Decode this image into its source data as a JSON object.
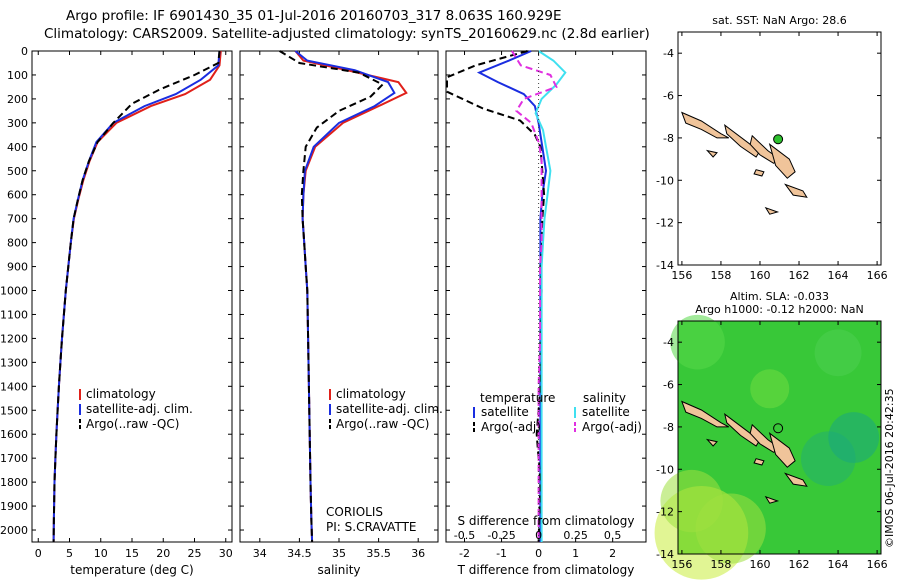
{
  "header": {
    "line1": "Argo profile: IF 6901430_35 01-Jul-2016 20160703_317 8.063S 160.929E",
    "line2": "Climatology: CARS2009. Satellite-adjusted climatology: synTS_20160629.nc (2.8d earlier)"
  },
  "colors": {
    "climatology": "#e0201a",
    "satellite": "#1a2de0",
    "argo": "#000000",
    "salinity_satellite": "#3fe0f0",
    "salinity_argo": "#e030e0",
    "land": "#f0c49a",
    "sla_field": "#38c838"
  },
  "legends": {
    "temp": [
      "climatology",
      "satellite-adj. clim.",
      "Argo(..raw -QC)"
    ],
    "sal": [
      "climatology",
      "satellite-adj. clim.",
      "Argo(..raw -QC)"
    ],
    "diff_head_t": "temperature",
    "diff_head_s": "salinity",
    "diff_t": [
      "satellite",
      "Argo(-adj)"
    ],
    "diff_s": [
      "satellite",
      "Argo(-adj)"
    ]
  },
  "annotations": {
    "coriolis": "CORIOLIS",
    "pi": "PI: S.CRAVATTE"
  },
  "map_titles": {
    "sst": "sat. SST: NaN Argo: 28.6",
    "sla1": "Altim. SLA: -0.033",
    "sla2": "Argo h1000: -0.12 h2000: NaN"
  },
  "credit": "©IMOS 06-Jul-2016 20:42:35",
  "chart_data": [
    {
      "type": "line",
      "xlabel": "temperature (deg C)",
      "ylim": [
        2050,
        0
      ],
      "xlim": [
        -1,
        31
      ],
      "xticks": [
        0,
        5,
        10,
        15,
        20,
        25,
        30
      ],
      "yticks": [
        0,
        100,
        200,
        300,
        400,
        500,
        600,
        700,
        800,
        900,
        1000,
        1100,
        1200,
        1300,
        1400,
        1500,
        1600,
        1700,
        1800,
        1900,
        2000
      ],
      "series": [
        {
          "name": "climatology",
          "color_key": "climatology",
          "dash": "",
          "x": [
            29.2,
            29.0,
            27.5,
            23.5,
            18.0,
            12.5,
            9.5,
            8.2,
            7.2,
            6.4,
            5.7,
            5.2,
            4.8,
            4.4,
            4.1,
            3.8,
            3.55,
            3.3,
            3.1,
            2.9,
            2.75,
            2.6,
            2.5,
            2.45
          ],
          "y": [
            0,
            60,
            120,
            180,
            230,
            300,
            380,
            460,
            540,
            620,
            700,
            800,
            900,
            1000,
            1100,
            1200,
            1300,
            1400,
            1500,
            1600,
            1700,
            1800,
            1950,
            2050
          ]
        },
        {
          "name": "satellite-adj. clim.",
          "color_key": "satellite",
          "dash": "",
          "x": [
            29.0,
            28.8,
            26.0,
            22.0,
            17.0,
            12.0,
            9.3,
            8.1,
            7.1,
            6.35,
            5.65,
            5.2,
            4.8,
            4.4,
            4.1,
            3.8,
            3.55,
            3.3,
            3.1,
            2.9,
            2.75,
            2.6,
            2.5,
            2.45
          ],
          "y": [
            0,
            60,
            120,
            180,
            230,
            300,
            380,
            460,
            540,
            620,
            700,
            800,
            900,
            1000,
            1100,
            1200,
            1300,
            1400,
            1500,
            1600,
            1700,
            1800,
            1950,
            2050
          ]
        },
        {
          "name": "Argo(..raw -QC)",
          "color_key": "argo",
          "dash": "7,4",
          "x": [
            29.0,
            28.8,
            25.0,
            19.5,
            15.0,
            12.0,
            9.5,
            8.1,
            7.1,
            6.35,
            5.65,
            5.2,
            4.8,
            4.4,
            4.1,
            3.8,
            3.55,
            3.3,
            3.1,
            2.9,
            2.75,
            2.6,
            2.5,
            2.45
          ],
          "y": [
            0,
            50,
            100,
            160,
            220,
            300,
            380,
            460,
            540,
            620,
            700,
            800,
            900,
            1000,
            1100,
            1200,
            1300,
            1400,
            1500,
            1600,
            1700,
            1800,
            1950,
            2050
          ]
        }
      ]
    },
    {
      "type": "line",
      "xlabel": "salinity",
      "ylim": [
        2050,
        0
      ],
      "xlim": [
        33.75,
        36.25
      ],
      "xticks": [
        34,
        34.5,
        35,
        35.5,
        36
      ],
      "series": [
        {
          "name": "climatology",
          "color_key": "climatology",
          "dash": "",
          "x": [
            34.45,
            34.55,
            35.1,
            35.75,
            35.85,
            35.5,
            35.05,
            34.7,
            34.58,
            34.55,
            34.54,
            34.56,
            34.58,
            34.6,
            34.61,
            34.62,
            34.63,
            34.64,
            34.65,
            34.66
          ],
          "y": [
            0,
            40,
            80,
            130,
            175,
            230,
            300,
            400,
            500,
            600,
            700,
            800,
            900,
            1000,
            1200,
            1400,
            1600,
            1800,
            1950,
            2050
          ]
        },
        {
          "name": "satellite-adj. clim.",
          "color_key": "satellite",
          "dash": "",
          "x": [
            34.45,
            34.6,
            35.2,
            35.62,
            35.7,
            35.45,
            35.0,
            34.68,
            34.57,
            34.55,
            34.54,
            34.56,
            34.58,
            34.6,
            34.61,
            34.62,
            34.63,
            34.64,
            34.65,
            34.66
          ],
          "y": [
            0,
            40,
            80,
            130,
            175,
            230,
            300,
            400,
            500,
            600,
            700,
            800,
            900,
            1000,
            1200,
            1400,
            1600,
            1800,
            1950,
            2050
          ]
        },
        {
          "name": "Argo(..raw -QC)",
          "color_key": "argo",
          "dash": "7,4",
          "x": [
            34.25,
            34.5,
            35.25,
            35.55,
            35.4,
            35.0,
            34.72,
            34.58,
            34.55,
            34.53,
            34.54,
            34.56,
            34.58,
            34.6,
            34.61,
            34.62,
            34.63,
            34.64,
            34.65,
            34.66
          ],
          "y": [
            0,
            50,
            90,
            140,
            190,
            250,
            320,
            400,
            500,
            600,
            700,
            800,
            900,
            1000,
            1200,
            1400,
            1600,
            1800,
            1950,
            2050
          ]
        }
      ]
    },
    {
      "type": "line",
      "xlabel": "T difference from climatology",
      "xlabel_top": "S difference from climatology",
      "ylim": [
        2050,
        0
      ],
      "xlim": [
        -2.5,
        2.9
      ],
      "xticks": [
        -2,
        -1,
        0,
        1,
        2
      ],
      "xticks_s": [
        -0.5,
        -0.25,
        0,
        0.25,
        0.5
      ],
      "s_scale": 4,
      "series": [
        {
          "name": "satellite",
          "group": "temperature",
          "color_key": "satellite",
          "dash": "",
          "x": [
            -0.2,
            -0.8,
            -1.6,
            -1.1,
            -0.4,
            -0.1,
            0,
            0.1,
            0.2,
            0.1,
            0.05,
            0.05,
            0.05,
            0.05,
            0.05,
            0.05,
            0.05,
            0.05,
            0.05
          ],
          "y": [
            0,
            40,
            90,
            130,
            180,
            230,
            300,
            400,
            500,
            600,
            700,
            800,
            900,
            1000,
            1200,
            1400,
            1600,
            1800,
            2050
          ]
        },
        {
          "name": "Argo(-adj)",
          "group": "temperature",
          "color_key": "argo",
          "dash": "7,4",
          "x": [
            -0.3,
            -1.7,
            -3.0,
            -3.0,
            -1.5,
            -0.5,
            -0.1,
            0.05,
            0.1,
            0.15,
            0.1,
            0.1,
            0.05,
            0.08,
            0.05,
            0.05,
            -0.05,
            0.05,
            0.0
          ],
          "y": [
            0,
            60,
            110,
            170,
            240,
            290,
            350,
            400,
            500,
            600,
            700,
            800,
            900,
            1000,
            1200,
            1400,
            1600,
            1800,
            2050
          ]
        },
        {
          "name": "satellite",
          "group": "salinity",
          "color_key": "salinity_satellite",
          "dash": "",
          "x": [
            0.0,
            0.1,
            0.18,
            0.12,
            0.02,
            -0.02,
            0.03,
            0.05,
            0.08,
            0.06,
            0.04,
            0.03,
            0.02,
            0.02,
            0.02,
            0.02,
            0.02,
            0.02,
            0.02
          ],
          "y": [
            0,
            40,
            90,
            140,
            200,
            260,
            330,
            400,
            500,
            600,
            700,
            800,
            900,
            1000,
            1200,
            1400,
            1600,
            1800,
            2050
          ]
        },
        {
          "name": "Argo(-adj)",
          "group": "salinity",
          "color_key": "salinity_argo",
          "dash": "7,4",
          "x": [
            -0.18,
            -0.12,
            0.08,
            0.12,
            -0.1,
            -0.15,
            -0.05,
            0.0,
            0.02,
            0.02,
            0.02,
            0.02,
            0.01,
            0.01,
            0.01,
            0.0,
            0.0,
            0.0,
            0.0
          ],
          "y": [
            0,
            60,
            100,
            150,
            200,
            250,
            300,
            380,
            450,
            550,
            650,
            800,
            900,
            1000,
            1200,
            1400,
            1600,
            1800,
            2050
          ]
        }
      ]
    },
    {
      "type": "map",
      "title": "sat. SST: NaN Argo: 28.6",
      "xlim": [
        155.8,
        166.2
      ],
      "ylim": [
        -14,
        -3
      ],
      "xticks": [
        156,
        158,
        160,
        162,
        164,
        166
      ],
      "yticks": [
        -4,
        -6,
        -8,
        -10,
        -12,
        -14
      ],
      "argo_position": [
        160.929,
        -8.063
      ]
    },
    {
      "type": "heatmap",
      "title": "Altim. SLA: -0.033 / Argo h1000: -0.12 h2000: NaN",
      "xlim": [
        155.8,
        166.2
      ],
      "ylim": [
        -14,
        -3
      ],
      "xticks": [
        156,
        158,
        160,
        162,
        164,
        166
      ],
      "yticks": [
        -4,
        -6,
        -8,
        -10,
        -12,
        -14
      ],
      "argo_position": [
        160.929,
        -8.063
      ]
    }
  ]
}
